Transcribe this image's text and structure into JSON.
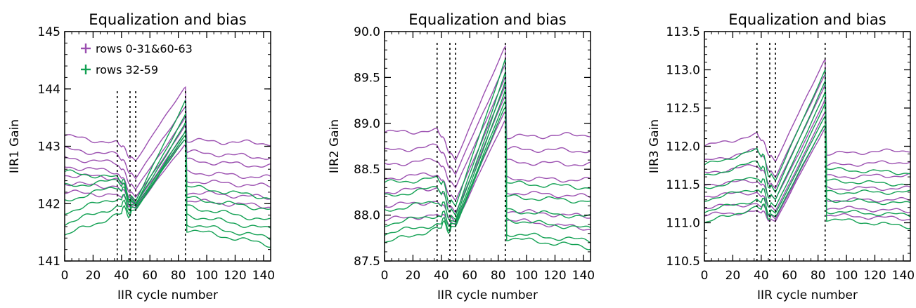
{
  "chart_data": [
    {
      "type": "line",
      "title": "Equalization and bias",
      "xlabel": "IIR cycle number",
      "ylabel": "IIR1 Gain",
      "xlim": [
        0,
        145
      ],
      "ylim": [
        141,
        145
      ],
      "xticks": [
        "0",
        "20",
        "40",
        "60",
        "80",
        "100",
        "120",
        "140"
      ],
      "yticks": [
        "141",
        "142",
        "143",
        "144",
        "145"
      ],
      "vlines": [
        37,
        46,
        50,
        85
      ],
      "legend": {
        "placement": "top-left",
        "entries": [
          {
            "label": "rows 0-31&60-63",
            "color": "#9b4fb0"
          },
          {
            "label": "rows 32-59",
            "color": "#11a052"
          }
        ]
      },
      "series": [
        {
          "group": "purple",
          "values": [
            143.18,
            143.05,
            142.75,
            144.05,
            143.1,
            143.05
          ]
        },
        {
          "group": "purple",
          "values": [
            142.95,
            142.85,
            142.45,
            143.7,
            142.9,
            142.8
          ]
        },
        {
          "group": "purple",
          "values": [
            142.8,
            142.7,
            142.25,
            143.5,
            142.75,
            142.65
          ]
        },
        {
          "group": "purple",
          "values": [
            142.65,
            142.55,
            142.1,
            143.35,
            142.55,
            142.45
          ]
        },
        {
          "group": "purple",
          "values": [
            142.5,
            142.45,
            142.0,
            143.25,
            142.4,
            142.3
          ]
        },
        {
          "group": "purple",
          "values": [
            142.35,
            142.3,
            141.95,
            143.15,
            142.2,
            142.1
          ]
        },
        {
          "group": "purple",
          "values": [
            142.2,
            142.15,
            141.92,
            143.05,
            142.05,
            141.95
          ]
        },
        {
          "group": "green",
          "values": [
            142.55,
            142.45,
            142.05,
            143.8,
            142.3,
            142.1
          ]
        },
        {
          "group": "green",
          "values": [
            142.3,
            142.4,
            142.0,
            143.55,
            142.1,
            141.9
          ]
        },
        {
          "group": "green",
          "values": [
            142.05,
            142.3,
            141.98,
            143.4,
            141.95,
            141.7
          ]
        },
        {
          "group": "green",
          "values": [
            141.85,
            142.1,
            141.95,
            143.25,
            141.8,
            141.55
          ]
        },
        {
          "group": "green",
          "values": [
            141.65,
            141.95,
            141.92,
            143.2,
            141.65,
            141.4
          ]
        },
        {
          "group": "green",
          "values": [
            141.45,
            141.8,
            141.9,
            143.15,
            141.55,
            141.28
          ]
        }
      ]
    },
    {
      "type": "line",
      "title": "Equalization and bias",
      "xlabel": "IIR cycle number",
      "ylabel": "IIR2 Gain",
      "xlim": [
        0,
        145
      ],
      "ylim": [
        87.5,
        90.0
      ],
      "xticks": [
        "0",
        "20",
        "40",
        "60",
        "80",
        "100",
        "120",
        "140"
      ],
      "yticks": [
        "87.5",
        "88.0",
        "88.5",
        "89.0",
        "89.5",
        "90.0"
      ],
      "vlines": [
        37,
        46,
        50,
        85
      ],
      "series": [
        {
          "group": "purple",
          "values": [
            88.9,
            88.92,
            88.6,
            89.85,
            88.85,
            88.88
          ]
        },
        {
          "group": "purple",
          "values": [
            88.7,
            88.75,
            88.45,
            89.65,
            88.72,
            88.7
          ]
        },
        {
          "group": "purple",
          "values": [
            88.55,
            88.6,
            88.3,
            89.5,
            88.58,
            88.55
          ]
        },
        {
          "group": "purple",
          "values": [
            88.4,
            88.45,
            88.15,
            89.4,
            88.4,
            88.38
          ]
        },
        {
          "group": "purple",
          "values": [
            88.25,
            88.3,
            88.02,
            89.3,
            88.25,
            88.2
          ]
        },
        {
          "group": "purple",
          "values": [
            88.1,
            88.15,
            87.92,
            89.15,
            88.05,
            87.98
          ]
        },
        {
          "group": "purple",
          "values": [
            87.95,
            88.0,
            87.9,
            89.05,
            87.95,
            87.85
          ]
        },
        {
          "group": "green",
          "values": [
            88.35,
            88.4,
            88.1,
            89.7,
            88.35,
            88.3
          ]
        },
        {
          "group": "green",
          "values": [
            88.2,
            88.3,
            88.0,
            89.55,
            88.2,
            88.15
          ]
        },
        {
          "group": "green",
          "values": [
            88.05,
            88.15,
            87.95,
            89.45,
            88.05,
            87.98
          ]
        },
        {
          "group": "green",
          "values": [
            87.9,
            88.0,
            87.92,
            89.35,
            87.95,
            87.85
          ]
        },
        {
          "group": "green",
          "values": [
            87.8,
            87.9,
            87.9,
            89.25,
            87.8,
            87.72
          ]
        },
        {
          "group": "green",
          "values": [
            87.7,
            87.85,
            87.88,
            89.2,
            87.75,
            87.65
          ]
        }
      ]
    },
    {
      "type": "line",
      "title": "Equalization and bias",
      "xlabel": "IIR cycle number",
      "ylabel": "IIR3 Gain",
      "xlim": [
        0,
        145
      ],
      "ylim": [
        110.5,
        113.5
      ],
      "xticks": [
        "0",
        "20",
        "40",
        "60",
        "80",
        "100",
        "120",
        "140"
      ],
      "yticks": [
        "110.5",
        "111.0",
        "111.5",
        "112.0",
        "112.5",
        "113.0",
        "113.5"
      ],
      "vlines": [
        37,
        46,
        50,
        85
      ],
      "series": [
        {
          "group": "purple",
          "values": [
            112.0,
            112.15,
            111.8,
            113.15,
            111.9,
            111.95
          ]
        },
        {
          "group": "purple",
          "values": [
            111.8,
            111.95,
            111.6,
            112.95,
            111.75,
            111.8
          ]
        },
        {
          "group": "purple",
          "values": [
            111.65,
            111.75,
            111.45,
            112.8,
            111.6,
            111.62
          ]
        },
        {
          "group": "purple",
          "values": [
            111.5,
            111.55,
            111.3,
            112.6,
            111.45,
            111.45
          ]
        },
        {
          "group": "purple",
          "values": [
            111.35,
            111.4,
            111.15,
            112.45,
            111.3,
            111.3
          ]
        },
        {
          "group": "purple",
          "values": [
            111.2,
            111.25,
            111.05,
            112.3,
            111.2,
            111.15
          ]
        },
        {
          "group": "purple",
          "values": [
            111.1,
            111.15,
            111.02,
            112.25,
            111.1,
            111.05
          ]
        },
        {
          "group": "green",
          "values": [
            111.75,
            111.95,
            111.55,
            113.0,
            111.7,
            111.65
          ]
        },
        {
          "group": "green",
          "values": [
            111.6,
            111.8,
            111.4,
            112.85,
            111.55,
            111.5
          ]
        },
        {
          "group": "green",
          "values": [
            111.45,
            111.6,
            111.3,
            112.7,
            111.4,
            111.4
          ]
        },
        {
          "group": "green",
          "values": [
            111.3,
            111.45,
            111.2,
            112.55,
            111.3,
            111.25
          ]
        },
        {
          "group": "green",
          "values": [
            111.15,
            111.3,
            111.12,
            112.4,
            111.15,
            111.1
          ]
        },
        {
          "group": "green",
          "values": [
            111.0,
            111.2,
            111.08,
            112.3,
            111.05,
            110.95
          ]
        }
      ]
    }
  ],
  "colors": {
    "purple": "#9b4fb0",
    "green": "#11a052",
    "axis": "#000000"
  }
}
